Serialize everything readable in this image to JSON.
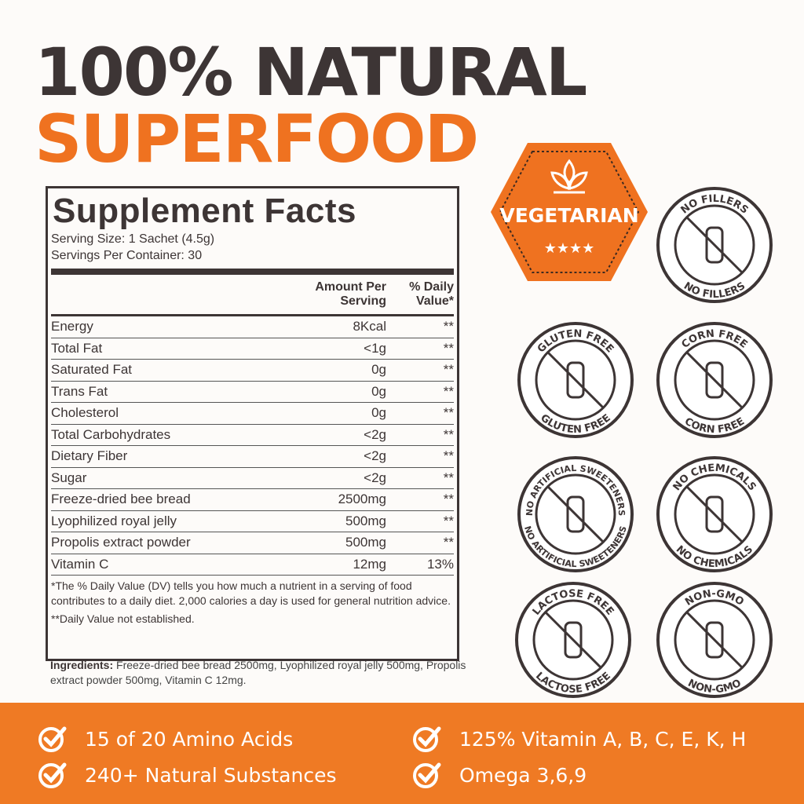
{
  "header": {
    "line1": "100% NATURAL",
    "line2": "SUPERFOOD"
  },
  "facts": {
    "title": "Supplement Facts",
    "serving_size": "Serving Size: 1 Sachet (4.5g)",
    "servings": "Servings Per Container: 30",
    "columns": [
      "Amount Per Serving",
      "% Daily Value*"
    ],
    "rows": [
      [
        "Energy",
        "8Kcal",
        "**"
      ],
      [
        "Total Fat",
        "<1g",
        "**"
      ],
      [
        "Saturated Fat",
        "0g",
        "**"
      ],
      [
        "Trans Fat",
        "0g",
        "**"
      ],
      [
        "Cholesterol",
        "0g",
        "**"
      ],
      [
        "Total Carbohydrates",
        "<2g",
        "**"
      ],
      [
        "Dietary Fiber",
        "<2g",
        "**"
      ],
      [
        "Sugar",
        "<2g",
        "**"
      ],
      [
        "Freeze-dried bee bread",
        "2500mg",
        "**"
      ],
      [
        "Lyophilized royal jelly",
        "500mg",
        "**"
      ],
      [
        "Propolis extract powder",
        "500mg",
        "**"
      ],
      [
        "Vitamin C",
        "12mg",
        "13%"
      ]
    ],
    "footnotes": [
      "*The % Daily Value (DV) tells you how much a nutrient in a serving of food contributes to a daily diet. 2,000 calories a day is used for general nutrition advice.",
      "**Daily Value not established."
    ],
    "ingredients_label": "Ingredients:",
    "ingredients": "Freeze-dried bee bread 2500mg, Lyophilized royal jelly 500mg, Propolis extract powder 500mg, Vitamin C 12mg."
  },
  "badges": {
    "vegetarian": "VEGETARIAN",
    "items": [
      {
        "top": "NO FILLERS",
        "bottom": "NO FILLERS"
      },
      {
        "top": "GLUTEN FREE",
        "bottom": "GLUTEN FREE"
      },
      {
        "top": "CORN FREE",
        "bottom": "CORN FREE"
      },
      {
        "top": "NO ARTIFICIAL SWEETENERS",
        "bottom": "NO ARTIFICIAL SWEETENERS"
      },
      {
        "top": "NO CHEMICALS",
        "bottom": "NO CHEMICALS"
      },
      {
        "top": "LACTOSE FREE",
        "bottom": "LACTOSE FREE"
      },
      {
        "top": "NON-GMO",
        "bottom": "NON-GMO"
      }
    ]
  },
  "features": [
    "15 of 20 Amino Acids",
    "125% Vitamin A, B, C, E, K, H",
    "240+ Natural Substances",
    "Omega 3,6,9"
  ]
}
